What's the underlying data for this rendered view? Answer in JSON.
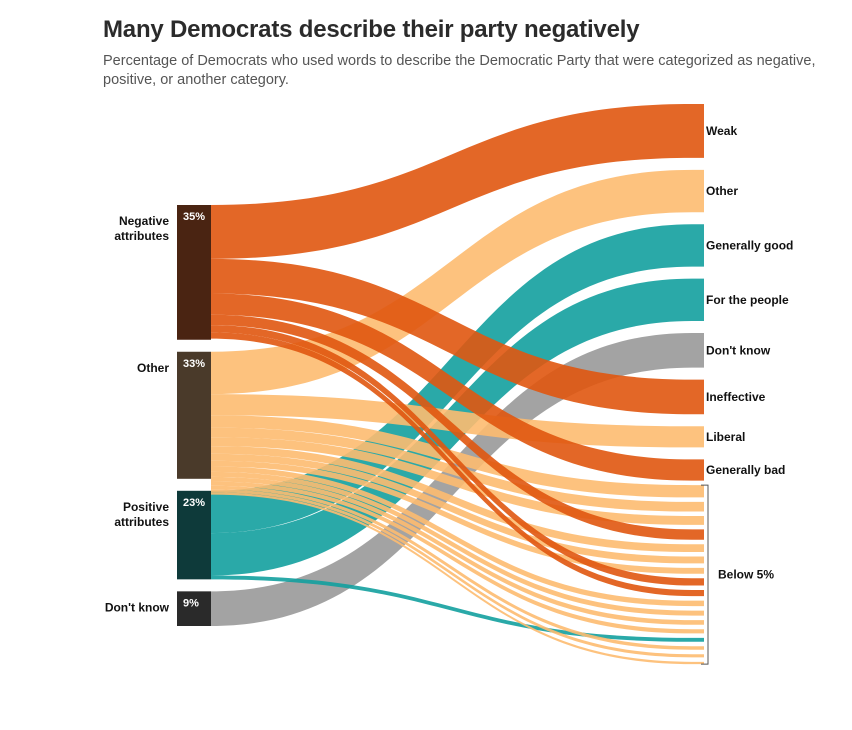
{
  "title": "Many Democrats describe their party negatively",
  "subtitle": "Percentage of Democrats who used words to describe the Democratic Party that were categorized as negative, positive, or another category.",
  "chart_data": {
    "type": "sankey",
    "sources": [
      {
        "id": "neg",
        "label_lines": [
          "Negative",
          "attributes"
        ],
        "value_label": "35%",
        "value": 35,
        "color": "#4a2412"
      },
      {
        "id": "oth",
        "label_lines": [
          "Other"
        ],
        "value_label": "33%",
        "value": 33,
        "color": "#4a3a2a"
      },
      {
        "id": "pos",
        "label_lines": [
          "Positive",
          "attributes"
        ],
        "value_label": "23%",
        "value": 23,
        "color": "#0e3a3a"
      },
      {
        "id": "dk",
        "label_lines": [
          "Don't know"
        ],
        "value_label": "9%",
        "value": 9,
        "color": "#2a2a2a"
      }
    ],
    "targets": [
      {
        "label": "Weak",
        "source": "neg",
        "value": 14
      },
      {
        "label": "Other",
        "source": "oth",
        "value": 11
      },
      {
        "label": "Generally good",
        "source": "pos",
        "value": 11
      },
      {
        "label": "For the people",
        "source": "pos",
        "value": 11
      },
      {
        "label": "Don't know",
        "source": "dk",
        "value": 9
      },
      {
        "label": "Ineffective",
        "source": "neg",
        "value": 9
      },
      {
        "label": "Liberal",
        "source": "oth",
        "value": 5.5
      },
      {
        "label": "Generally bad",
        "source": "neg",
        "value": 5.5
      },
      {
        "label": "",
        "source": "oth",
        "value": 3.2
      },
      {
        "label": "",
        "source": "oth",
        "value": 2.5
      },
      {
        "label": "",
        "source": "oth",
        "value": 2.3
      },
      {
        "label": "",
        "source": "neg",
        "value": 2.7
      },
      {
        "label": "",
        "source": "oth",
        "value": 2.0
      },
      {
        "label": "",
        "source": "oth",
        "value": 1.8
      },
      {
        "label": "",
        "source": "oth",
        "value": 1.5
      },
      {
        "label": "",
        "source": "neg",
        "value": 1.9
      },
      {
        "label": "",
        "source": "neg",
        "value": 1.6
      },
      {
        "label": "",
        "source": "oth",
        "value": 1.4
      },
      {
        "label": "",
        "source": "oth",
        "value": 1.3
      },
      {
        "label": "",
        "source": "oth",
        "value": 1.2
      },
      {
        "label": "",
        "source": "oth",
        "value": 1.1
      },
      {
        "label": "",
        "source": "pos",
        "value": 1.0
      },
      {
        "label": "",
        "source": "oth",
        "value": 0.9
      },
      {
        "label": "",
        "source": "oth",
        "value": 0.8
      },
      {
        "label": "",
        "source": "oth",
        "value": 0.6
      }
    ],
    "bracket_label": "Below 5%",
    "flow_colors": {
      "neg": "#e0560f",
      "oth": "#fdbb70",
      "pos": "#13a09e",
      "dk": "#999999"
    }
  }
}
